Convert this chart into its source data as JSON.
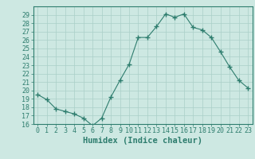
{
  "xlabel": "Humidex (Indice chaleur)",
  "ylabel": "",
  "x_values": [
    0,
    1,
    2,
    3,
    4,
    5,
    6,
    7,
    8,
    9,
    10,
    11,
    12,
    13,
    14,
    15,
    16,
    17,
    18,
    19,
    20,
    21,
    22,
    23
  ],
  "y_values": [
    19.5,
    18.9,
    17.8,
    17.5,
    17.2,
    16.7,
    15.8,
    16.7,
    19.2,
    21.2,
    23.1,
    26.3,
    26.3,
    27.6,
    29.1,
    28.7,
    29.1,
    27.5,
    27.2,
    26.3,
    24.6,
    22.8,
    21.2,
    20.3
  ],
  "line_color": "#2e7d6e",
  "marker": "+",
  "marker_size": 4,
  "background_color": "#cde8e2",
  "grid_color": "#aacfc8",
  "ylim": [
    16,
    30
  ],
  "xlim": [
    -0.5,
    23.5
  ],
  "yticks": [
    16,
    17,
    18,
    19,
    20,
    21,
    22,
    23,
    24,
    25,
    26,
    27,
    28,
    29
  ],
  "xticks": [
    0,
    1,
    2,
    3,
    4,
    5,
    6,
    7,
    8,
    9,
    10,
    11,
    12,
    13,
    14,
    15,
    16,
    17,
    18,
    19,
    20,
    21,
    22,
    23
  ],
  "tick_label_fontsize": 6,
  "xlabel_fontsize": 7.5,
  "axis_color": "#2e7d6e",
  "tick_color": "#2e7d6e",
  "spine_color": "#2e7d6e"
}
